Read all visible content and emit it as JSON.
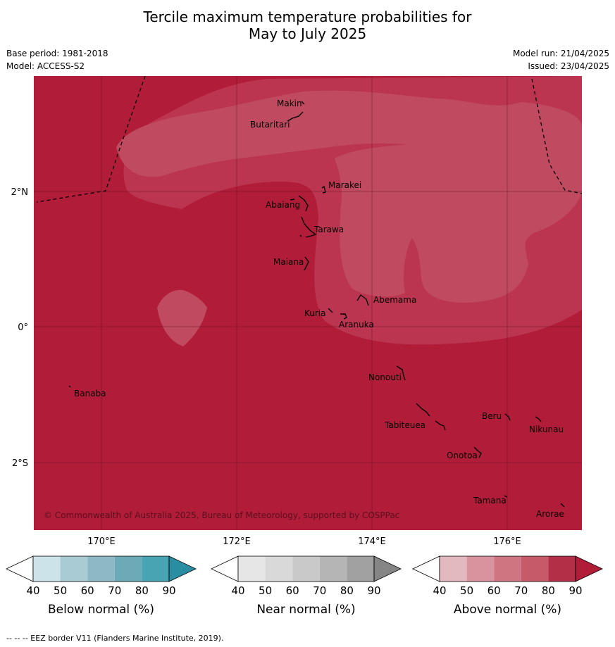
{
  "title_line1": "Tercile maximum temperature probabilities for",
  "title_line2": "May to July 2025",
  "meta_left": [
    "Base period: 1981-2018",
    "Model: ACCESS-S2"
  ],
  "meta_right": [
    "Model run: 21/04/2025",
    "Issued: 23/04/2025"
  ],
  "colors": {
    "base": "#b11c38",
    "level80": "#bc3550",
    "level70": "#c04a60",
    "ocean_border": "#000000"
  },
  "axes": {
    "lat_labels": [
      "2°N",
      "0°",
      "2°S"
    ],
    "lon_labels": [
      "170°E",
      "172°E",
      "174°E",
      "176°E"
    ]
  },
  "places": [
    "Makin",
    "Butaritari",
    "Marakei",
    "Abaiang",
    "Tarawa",
    "Maiana",
    "Abemama",
    "Kuria",
    "Aranuka",
    "Nonouti",
    "Banaba",
    "Beru",
    "Nikunau",
    "Tabiteuea",
    "Onotoa",
    "Tamana",
    "Arorae"
  ],
  "copyright": "© Commonwealth of Australia 2025, Bureau of Meteorology, supported by COSPPac",
  "colorbars": [
    {
      "title": "Below normal (%)",
      "ticks": [
        "40",
        "50",
        "60",
        "70",
        "80",
        "90"
      ],
      "colors": [
        "#ffffff",
        "#cce3ea",
        "#a9cbd3",
        "#8cb9c4",
        "#6caab8",
        "#48a3b2",
        "#2a8ea3"
      ]
    },
    {
      "title": "Near normal (%)",
      "ticks": [
        "40",
        "50",
        "60",
        "70",
        "80",
        "90"
      ],
      "colors": [
        "#ffffff",
        "#e6e6e6",
        "#d9d9d9",
        "#c9c9c9",
        "#b5b5b5",
        "#a1a1a1",
        "#858585"
      ]
    },
    {
      "title": "Above normal (%)",
      "ticks": [
        "40",
        "50",
        "60",
        "70",
        "80",
        "90"
      ],
      "colors": [
        "#ffffff",
        "#e3b9c0",
        "#d9939e",
        "#ce7581",
        "#c75a69",
        "#b32e47",
        "#b11c38"
      ]
    }
  ],
  "footnote": "-- -- -- EEZ border V11 (Flanders Marine Institute, 2019)."
}
